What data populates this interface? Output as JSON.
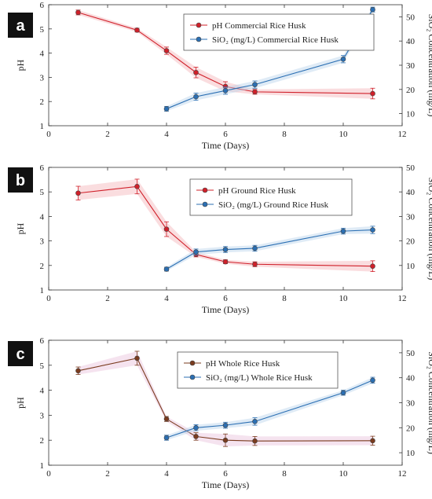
{
  "chart_data": [
    {
      "type": "line",
      "panel_label": "a",
      "xlabel": "Time (Days)",
      "ylabel": "pH",
      "y2label": "SiO₂ Concentration (mg/L)",
      "xlim": [
        0,
        12
      ],
      "ylim": [
        1,
        6
      ],
      "y2lim": [
        5,
        55
      ],
      "xticks": [
        0,
        2,
        4,
        6,
        8,
        10,
        12
      ],
      "yticks": [
        1,
        2,
        3,
        4,
        5,
        6
      ],
      "y2ticks": [
        10,
        20,
        30,
        40,
        50
      ],
      "grid": false,
      "legend_position": "top-right",
      "series": [
        {
          "name": "pH Commercial Rice Husk",
          "axis": "left",
          "color": "#d0202a",
          "band": "#f3b3b8",
          "x": [
            1,
            3,
            4,
            5,
            6,
            7,
            11
          ],
          "y": [
            5.68,
            4.95,
            4.1,
            3.2,
            2.62,
            2.4,
            2.33
          ],
          "err": [
            0.1,
            0.08,
            0.15,
            0.22,
            0.2,
            0.1,
            0.22
          ]
        },
        {
          "name": "SiO₂ (mg/L) Commercial Rice Husk",
          "axis": "right",
          "color": "#2b6fb3",
          "band": "#b9d2ea",
          "x": [
            4,
            5,
            6,
            7,
            10,
            11
          ],
          "y": [
            12,
            17,
            19.5,
            22,
            32.5,
            53
          ],
          "err": [
            1,
            1.5,
            1.5,
            1.5,
            1.5,
            1
          ]
        }
      ]
    },
    {
      "type": "line",
      "panel_label": "b",
      "xlabel": "Time (Days)",
      "ylabel": "pH",
      "y2label": "SiO₂ Concentration (mg/L)",
      "xlim": [
        0,
        12
      ],
      "ylim": [
        1,
        6
      ],
      "y2lim": [
        0,
        50
      ],
      "xticks": [
        0,
        2,
        4,
        6,
        8,
        10,
        12
      ],
      "yticks": [
        1,
        2,
        3,
        4,
        5,
        6
      ],
      "y2ticks": [
        10,
        20,
        30,
        40,
        50
      ],
      "grid": false,
      "legend_position": "top-right",
      "series": [
        {
          "name": "pH Ground Rice Husk",
          "axis": "left",
          "color": "#d0202a",
          "band": "#f3b3b8",
          "x": [
            1,
            3,
            4,
            5,
            6,
            7,
            11
          ],
          "y": [
            4.95,
            5.22,
            3.48,
            2.45,
            2.15,
            2.05,
            1.97
          ],
          "err": [
            0.28,
            0.3,
            0.3,
            0.1,
            0.08,
            0.1,
            0.22
          ]
        },
        {
          "name": "SiO₂ (mg/L) Ground Rice Husk",
          "axis": "right",
          "color": "#2b6fb3",
          "band": "#b9d2ea",
          "x": [
            4,
            5,
            6,
            7,
            10,
            11
          ],
          "y": [
            8.5,
            15.5,
            16.5,
            17,
            24,
            24.5
          ],
          "err": [
            0.8,
            1.2,
            1.2,
            1.2,
            1.2,
            1.5
          ]
        }
      ]
    },
    {
      "type": "line",
      "panel_label": "c",
      "xlabel": "Time (Days)",
      "ylabel": "pH",
      "y2label": "SiO₂ Concentration (mg/L)",
      "xlim": [
        0,
        12
      ],
      "ylim": [
        1,
        6
      ],
      "y2lim": [
        5,
        55
      ],
      "xticks": [
        0,
        2,
        4,
        6,
        8,
        10,
        12
      ],
      "yticks": [
        1,
        2,
        3,
        4,
        5,
        6
      ],
      "y2ticks": [
        10,
        20,
        30,
        40,
        50
      ],
      "grid": false,
      "legend_position": "top-right",
      "series": [
        {
          "name": "pH Whole Rice Husk",
          "axis": "left",
          "color": "#7a3b1e",
          "band": "#e8c0dc",
          "x": [
            1,
            3,
            4,
            5,
            6,
            7,
            11
          ],
          "y": [
            4.78,
            5.28,
            2.85,
            2.15,
            2.0,
            1.97,
            1.98
          ],
          "err": [
            0.15,
            0.28,
            0.1,
            0.15,
            0.25,
            0.18,
            0.18
          ]
        },
        {
          "name": "SiO₂ (mg/L) Whole Rice Husk",
          "axis": "right",
          "color": "#2b6fb3",
          "band": "#b9d2ea",
          "x": [
            4,
            5,
            6,
            7,
            10,
            11
          ],
          "y": [
            16,
            20,
            21,
            22.5,
            34,
            39
          ],
          "err": [
            1,
            1.2,
            1.2,
            1.5,
            1,
            1.2
          ]
        }
      ]
    }
  ]
}
